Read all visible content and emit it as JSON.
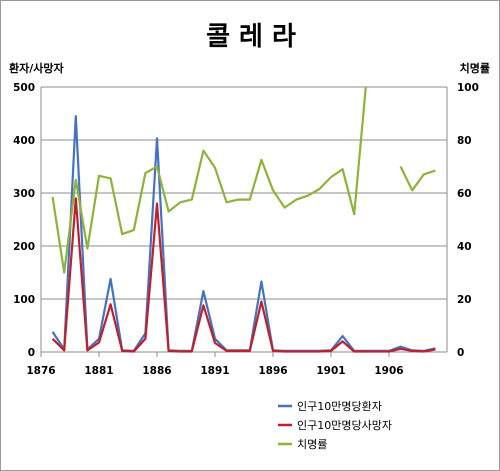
{
  "chart_data": {
    "type": "line",
    "title": "콜 레 라",
    "ylabel_left": "환자/사망자",
    "ylabel_right": "치명률",
    "xlim": [
      1876,
      1911
    ],
    "ylim_left": [
      0,
      500
    ],
    "ylim_right": [
      0,
      100
    ],
    "x_ticks": [
      1876,
      1881,
      1886,
      1891,
      1896,
      1901,
      1906
    ],
    "y_ticks_left": [
      0,
      100,
      200,
      300,
      400,
      500
    ],
    "y_ticks_right": [
      0,
      20,
      40,
      60,
      80,
      100
    ],
    "grid": "horizontal",
    "legend_position": "bottom",
    "x": [
      1877,
      1878,
      1879,
      1880,
      1881,
      1882,
      1883,
      1884,
      1885,
      1886,
      1887,
      1888,
      1889,
      1890,
      1891,
      1892,
      1893,
      1894,
      1895,
      1896,
      1897,
      1898,
      1899,
      1900,
      1901,
      1902,
      1903,
      1904,
      1905,
      1906,
      1907,
      1908,
      1909,
      1910
    ],
    "series": [
      {
        "name": "인구10만명당환자",
        "axis": "left",
        "color": "#4472c4",
        "values": [
          38,
          5,
          445,
          5,
          25,
          138,
          3,
          2,
          35,
          403,
          3,
          2,
          2,
          115,
          25,
          3,
          3,
          3,
          133,
          3,
          2,
          2,
          2,
          2,
          3,
          30,
          2,
          2,
          2,
          2,
          10,
          3,
          2,
          7
        ]
      },
      {
        "name": "인구10만명당사망자",
        "axis": "left",
        "color": "#c0202a",
        "values": [
          25,
          3,
          290,
          3,
          18,
          90,
          2,
          1,
          25,
          280,
          2,
          1,
          1,
          88,
          17,
          2,
          2,
          2,
          95,
          2,
          1,
          1,
          1,
          1,
          2,
          20,
          1,
          1,
          1,
          1,
          6,
          2,
          1,
          5
        ]
      },
      {
        "name": "치명률",
        "axis": "right",
        "color": "#8db33a",
        "values": [
          58.5,
          30,
          65,
          39,
          66.5,
          65.5,
          44.5,
          46,
          67.5,
          70,
          53,
          56.5,
          57.5,
          76,
          69.5,
          56.5,
          57.5,
          57.5,
          72.5,
          61,
          54.5,
          57.5,
          59,
          61.5,
          66,
          69,
          52,
          100,
          null,
          null,
          70,
          61,
          67,
          68.5
        ]
      }
    ]
  }
}
